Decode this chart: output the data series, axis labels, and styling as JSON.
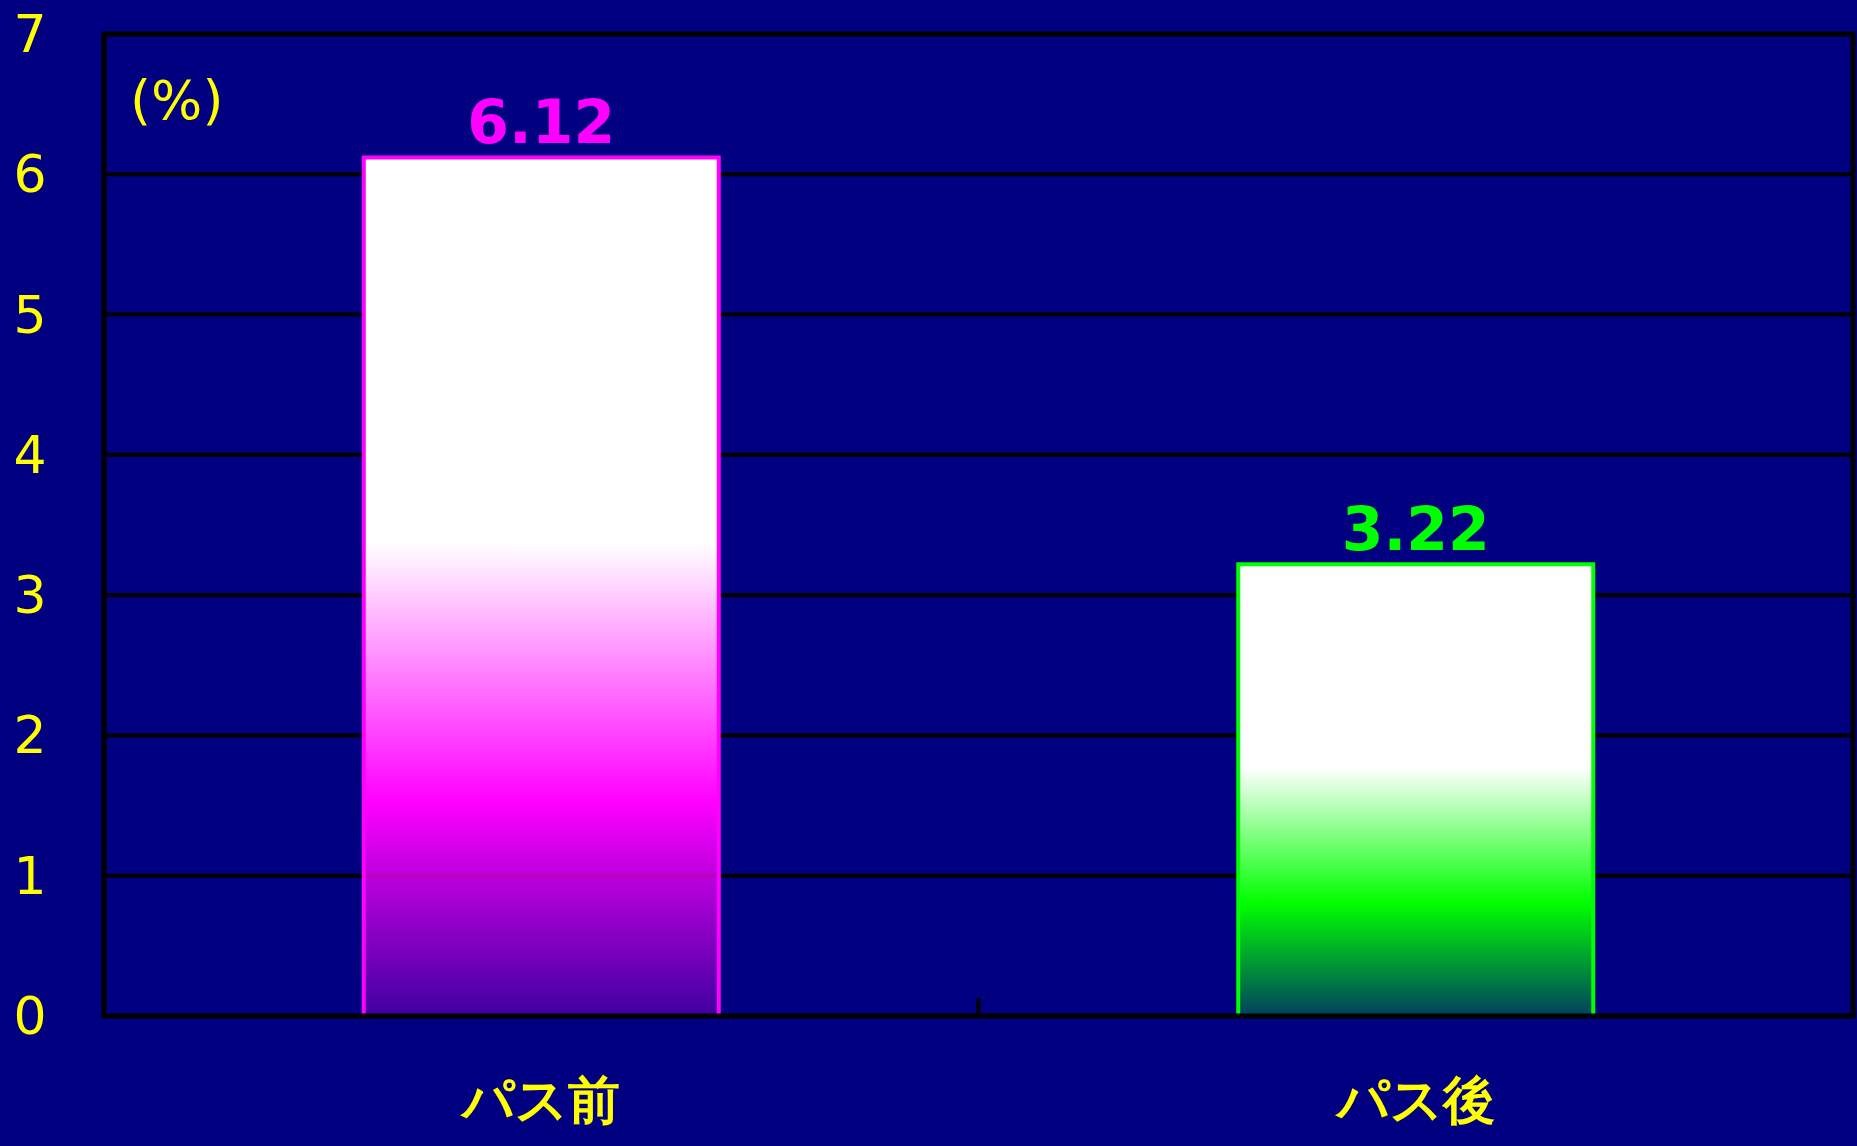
{
  "chart_data": {
    "type": "bar",
    "categories": [
      "パス前",
      "パス後"
    ],
    "values": [
      6.12,
      3.22
    ],
    "colors": [
      "#ff00ff",
      "#00ff00"
    ],
    "ylabel": "(%)",
    "ylim": [
      0,
      7
    ],
    "yticks": [
      0,
      1,
      2,
      3,
      4,
      5,
      6,
      7
    ],
    "grid": "y",
    "data_labels": true
  }
}
